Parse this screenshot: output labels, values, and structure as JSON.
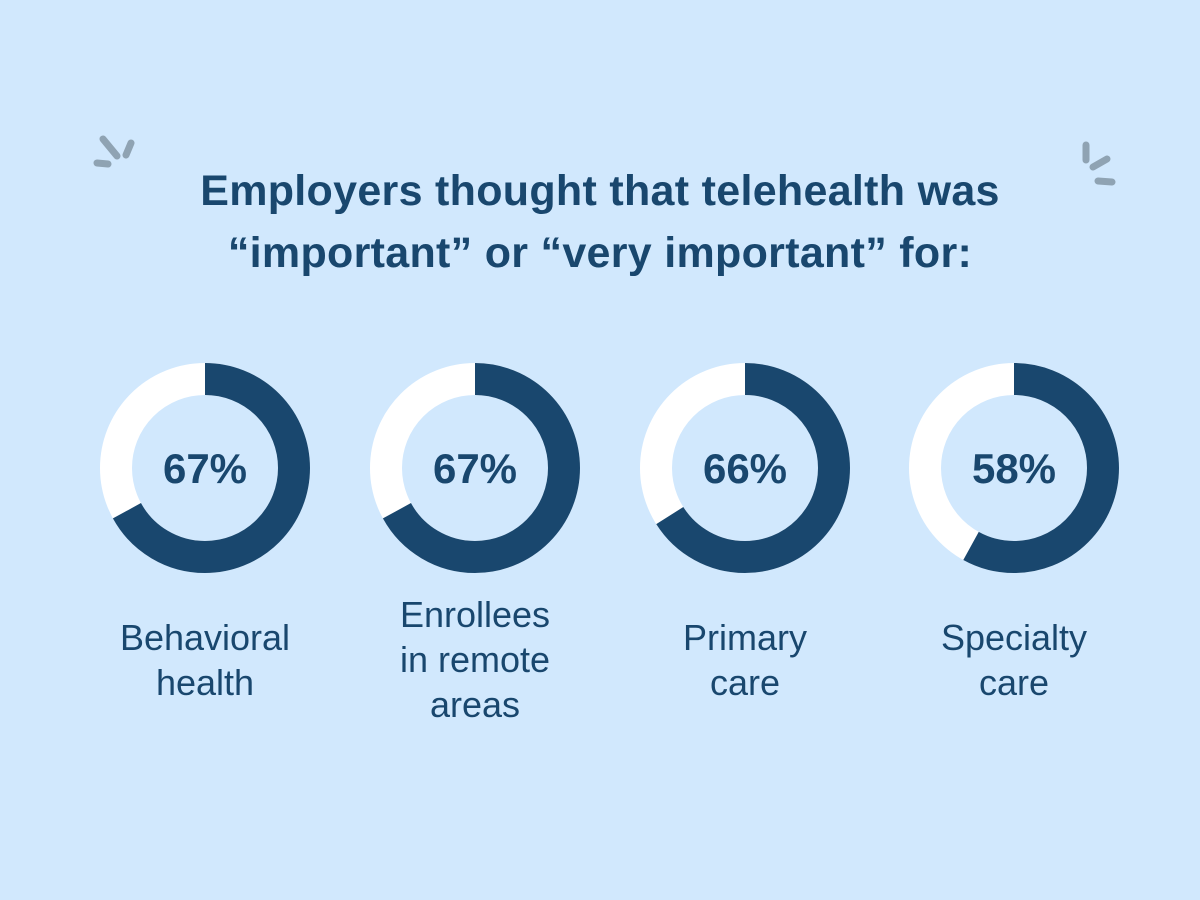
{
  "title": {
    "line1": "Employers thought that telehealth was",
    "line2": "“important” or “very important” for:"
  },
  "colors": {
    "background": "#d1e8fd",
    "filled": "#19476e",
    "remaining": "#ffffff",
    "sparkle": "#8fa3b3"
  },
  "chart_data": {
    "type": "donut",
    "title": "Employers thought that telehealth was “important” or “very important” for:",
    "unit": "%",
    "categories": [
      "Behavioral health",
      "Enrollees in remote areas",
      "Primary care",
      "Specialty care"
    ],
    "values": [
      67,
      67,
      66,
      58
    ],
    "value_labels": [
      "67%",
      "67%",
      "66%",
      "58%"
    ],
    "label_lines": [
      [
        "Behavioral",
        "health"
      ],
      [
        "Enrollees",
        "in remote",
        "areas"
      ],
      [
        "Primary",
        "care"
      ],
      [
        "Specialty",
        "care"
      ]
    ]
  }
}
